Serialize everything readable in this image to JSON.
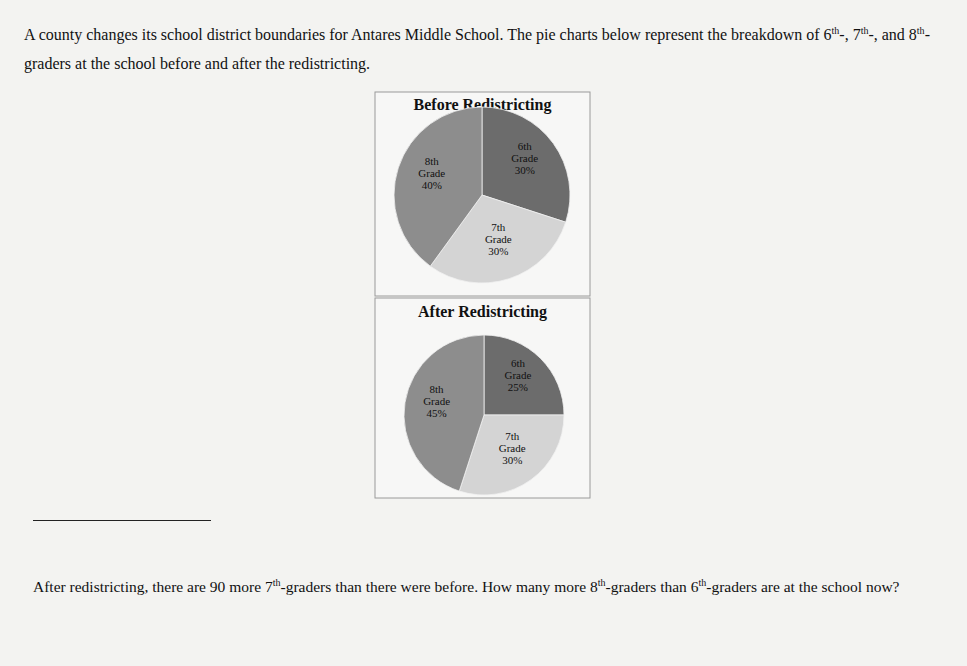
{
  "document": {
    "intro": "A county changes its school district boundaries for Antares Middle School. The pie charts below represent the breakdown of 6th-, 7th-, and 8th-graders at the school before and after the redistricting.",
    "question": "After redistricting, there are 90 more 7th-graders than there were before. How many more 8th-graders than 6th-graders are at the school now?"
  },
  "chart_data": [
    {
      "type": "pie",
      "title": "Before Redistricting",
      "categories": [
        "6th Grade",
        "7th Grade",
        "8th Grade"
      ],
      "values": [
        30,
        30,
        40
      ],
      "value_labels": [
        "30%",
        "30%",
        "40%"
      ],
      "colors": [
        "#6c6c6c",
        "#d4d4d4",
        "#8d8d8d"
      ],
      "data_labels": true
    },
    {
      "type": "pie",
      "title": "After Redistricting",
      "categories": [
        "6th Grade",
        "7th Grade",
        "8th Grade"
      ],
      "values": [
        25,
        30,
        45
      ],
      "value_labels": [
        "25%",
        "30%",
        "45%"
      ],
      "colors": [
        "#6c6c6c",
        "#d4d4d4",
        "#8d8d8d"
      ],
      "data_labels": true
    }
  ]
}
